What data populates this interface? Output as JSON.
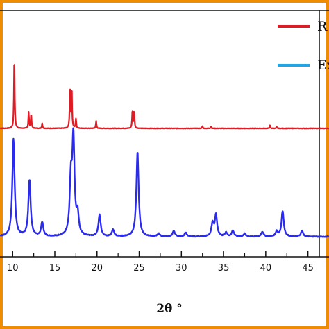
{
  "chart_data": {
    "type": "line",
    "title": "",
    "xlabel": "2θ °",
    "ylabel": "",
    "xlim": [
      8.5,
      47.5
    ],
    "xticks": [
      10,
      15,
      20,
      25,
      30,
      35,
      40,
      45
    ],
    "xtick_labels": [
      "10",
      "15",
      "20",
      "25",
      "30",
      "35",
      "40",
      "45"
    ],
    "grid": false,
    "legend_position": "top-right",
    "legend": [
      {
        "label": "R",
        "color": "#e01b24"
      },
      {
        "label": "Ex",
        "color": "#1ea7e8"
      }
    ],
    "series": [
      {
        "name": "R",
        "color": "#e01b24",
        "baseline": 0,
        "peaks": [
          {
            "x": 10.2,
            "y": 100
          },
          {
            "x": 11.9,
            "y": 22
          },
          {
            "x": 12.2,
            "y": 20
          },
          {
            "x": 13.5,
            "y": 7
          },
          {
            "x": 16.8,
            "y": 57
          },
          {
            "x": 17.0,
            "y": 55
          },
          {
            "x": 17.5,
            "y": 13
          },
          {
            "x": 19.9,
            "y": 10
          },
          {
            "x": 24.2,
            "y": 25
          },
          {
            "x": 24.4,
            "y": 24
          },
          {
            "x": 32.5,
            "y": 3
          },
          {
            "x": 33.5,
            "y": 3
          },
          {
            "x": 40.5,
            "y": 4
          },
          {
            "x": 41.3,
            "y": 2
          }
        ]
      },
      {
        "name": "Ex",
        "color": "#2b2bef",
        "baseline": 0,
        "peaks": [
          {
            "x": 10.1,
            "y": 100
          },
          {
            "x": 12.0,
            "y": 58
          },
          {
            "x": 13.5,
            "y": 14
          },
          {
            "x": 16.9,
            "y": 54
          },
          {
            "x": 17.2,
            "y": 98
          },
          {
            "x": 17.7,
            "y": 20
          },
          {
            "x": 20.3,
            "y": 22
          },
          {
            "x": 21.9,
            "y": 7
          },
          {
            "x": 24.8,
            "y": 87
          },
          {
            "x": 27.3,
            "y": 3
          },
          {
            "x": 29.1,
            "y": 6
          },
          {
            "x": 30.5,
            "y": 4
          },
          {
            "x": 33.7,
            "y": 13
          },
          {
            "x": 34.1,
            "y": 22
          },
          {
            "x": 35.3,
            "y": 4
          },
          {
            "x": 36.1,
            "y": 6
          },
          {
            "x": 37.5,
            "y": 3
          },
          {
            "x": 39.6,
            "y": 5
          },
          {
            "x": 41.3,
            "y": 5
          },
          {
            "x": 42.0,
            "y": 26
          },
          {
            "x": 44.3,
            "y": 6
          }
        ]
      }
    ]
  }
}
